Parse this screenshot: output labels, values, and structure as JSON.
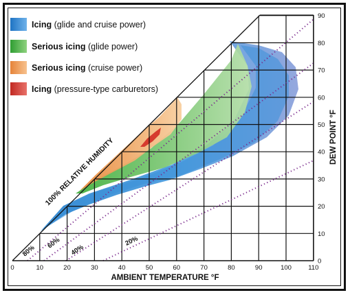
{
  "legend": [
    {
      "bold": "Icing",
      "rest": " (glide and cruise power)",
      "color": "#3d8fd6"
    },
    {
      "bold": "Serious icing",
      "rest": " (glide power)",
      "color": "#5cb84c"
    },
    {
      "bold": "Serious icing",
      "rest": " (cruise power)",
      "color": "#f0a25a"
    },
    {
      "bold": "Icing",
      "rest": " (pressure-type carburetors)",
      "color": "#d63b2e"
    }
  ],
  "axes": {
    "x_title": "AMBIENT TEMPERATURE °F",
    "y_title": "DEW POINT °F",
    "x_ticks": [
      "0",
      "10",
      "20",
      "30",
      "40",
      "50",
      "60",
      "70",
      "80",
      "90",
      "100",
      "110"
    ],
    "y_ticks": [
      "0",
      "10",
      "20",
      "30",
      "40",
      "50",
      "60",
      "70",
      "80",
      "90"
    ]
  },
  "rh_label": "100% RELATIVE HUMIDITY",
  "rh_lines": [
    "80%",
    "60%",
    "40%",
    "20%"
  ],
  "colors": {
    "blue": "#3d8fd6",
    "lavender": "#8f9bd6",
    "green": "#6cc25a",
    "orange": "#f0a25a",
    "red": "#d63b2e",
    "dotted": "#7a2a8c"
  }
}
